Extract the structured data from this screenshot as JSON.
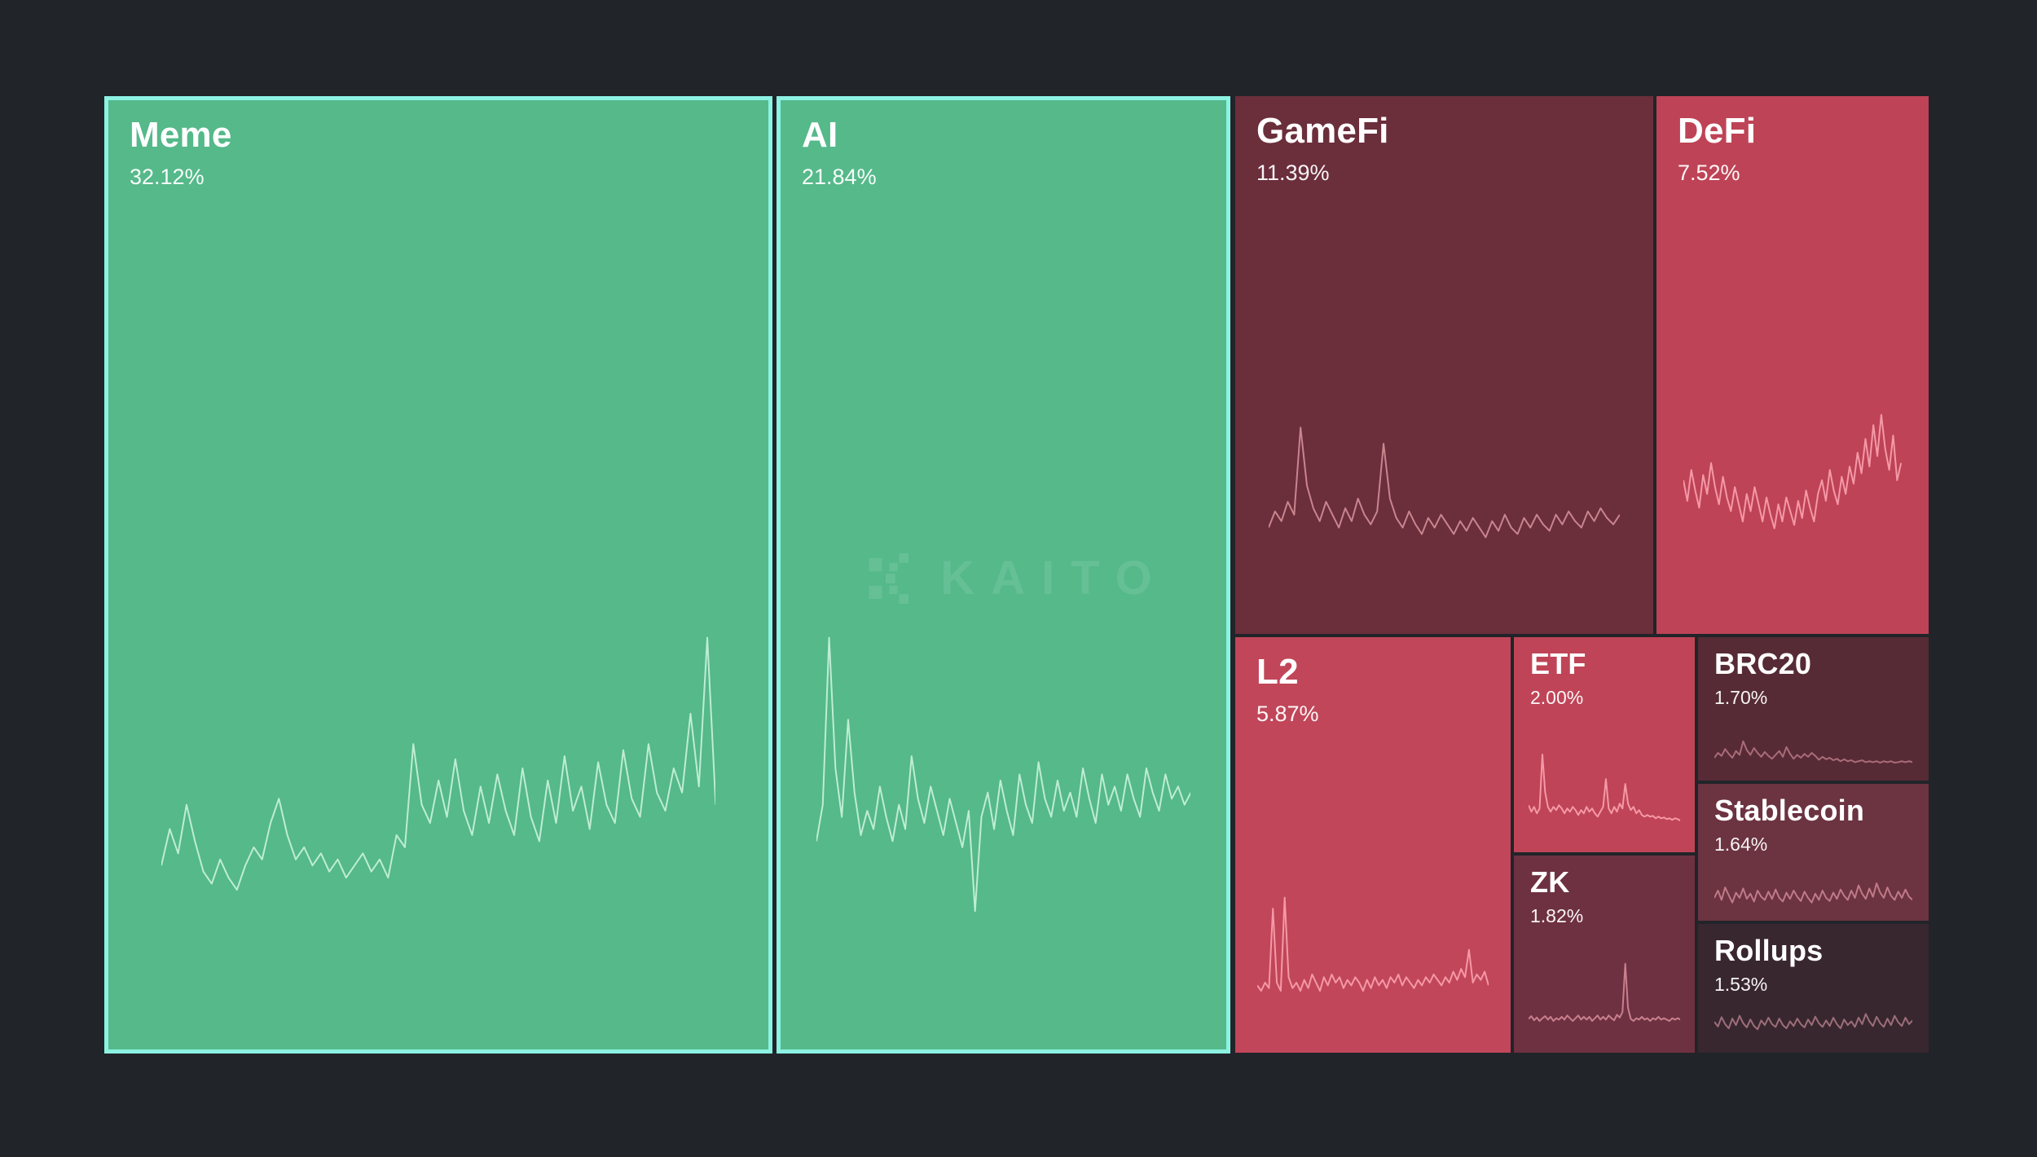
{
  "watermark": {
    "brand": "KAITO"
  },
  "colors": {
    "page_background": "#212429",
    "up_fill": "#55B98A",
    "up_border": "#8CF2E2",
    "down_bright": "#BF4457"
  },
  "chart_data": {
    "type": "treemap",
    "title": "",
    "unit": "%",
    "legend": "none",
    "note": "sector mindshare treemap; green tiles outlined cyan trend up, red tiles trend down; each tile contains a sparkline",
    "sectors": [
      {
        "name": "Meme",
        "share": "32.12%",
        "value": 32.12,
        "direction": "up",
        "fill": "#55B98A",
        "border": "#8CF2E2",
        "spark_color": "#BEEDD3",
        "spark": [
          20,
          32,
          24,
          40,
          28,
          18,
          14,
          22,
          16,
          12,
          20,
          26,
          22,
          34,
          42,
          30,
          22,
          26,
          20,
          24,
          18,
          22,
          16,
          20,
          24,
          18,
          22,
          16,
          30,
          26,
          60,
          40,
          34,
          48,
          36,
          55,
          38,
          30,
          46,
          34,
          50,
          38,
          30,
          52,
          36,
          28,
          48,
          34,
          56,
          38,
          46,
          32,
          54,
          40,
          34,
          58,
          42,
          36,
          60,
          44,
          38,
          52,
          44,
          70,
          46,
          95,
          40
        ]
      },
      {
        "name": "AI",
        "share": "21.84%",
        "value": 21.84,
        "direction": "up",
        "fill": "#55B98A",
        "border": "#8CF2E2",
        "spark_color": "#BEEDD3",
        "spark": [
          28,
          40,
          95,
          52,
          36,
          68,
          44,
          30,
          38,
          32,
          46,
          36,
          28,
          40,
          32,
          56,
          42,
          34,
          46,
          38,
          30,
          42,
          34,
          26,
          38,
          5,
          36,
          44,
          32,
          48,
          38,
          30,
          50,
          40,
          34,
          54,
          42,
          36,
          48,
          38,
          44,
          36,
          52,
          42,
          34,
          50,
          40,
          46,
          38,
          50,
          42,
          36,
          52,
          44,
          38,
          50,
          42,
          46,
          40,
          44
        ]
      },
      {
        "name": "GameFi",
        "share": "11.39%",
        "value": 11.39,
        "direction": "down",
        "fill": "#6B2E3B",
        "spark_color": "#C9858F",
        "spark": [
          26,
          36,
          30,
          42,
          34,
          88,
          52,
          38,
          30,
          42,
          34,
          26,
          38,
          30,
          44,
          34,
          28,
          36,
          78,
          44,
          32,
          26,
          36,
          28,
          22,
          32,
          26,
          34,
          28,
          22,
          30,
          24,
          32,
          26,
          20,
          30,
          24,
          34,
          26,
          22,
          32,
          26,
          34,
          28,
          24,
          34,
          28,
          36,
          30,
          26,
          36,
          30,
          38,
          32,
          28,
          34
        ]
      },
      {
        "name": "DeFi",
        "share": "7.52%",
        "value": 7.52,
        "direction": "down",
        "fill": "#BE4356",
        "spark_color": "#F598A7",
        "spark": [
          52,
          40,
          58,
          46,
          36,
          55,
          44,
          62,
          48,
          38,
          54,
          42,
          34,
          48,
          38,
          28,
          44,
          34,
          48,
          38,
          28,
          42,
          32,
          24,
          38,
          28,
          42,
          34,
          26,
          40,
          30,
          46,
          36,
          28,
          44,
          52,
          40,
          58,
          46,
          38,
          54,
          44,
          60,
          50,
          68,
          56,
          76,
          60,
          84,
          66,
          90,
          70,
          58,
          78,
          52,
          62
        ]
      },
      {
        "name": "L2",
        "share": "5.87%",
        "value": 5.87,
        "direction": "down",
        "fill": "#C14659",
        "spark_color": "#F598A7",
        "spark": [
          16,
          12,
          18,
          14,
          72,
          18,
          12,
          80,
          22,
          14,
          18,
          12,
          20,
          14,
          24,
          18,
          12,
          22,
          16,
          24,
          18,
          22,
          14,
          20,
          16,
          22,
          18,
          12,
          20,
          14,
          22,
          16,
          20,
          14,
          22,
          18,
          24,
          16,
          22,
          18,
          14,
          20,
          16,
          22,
          18,
          24,
          20,
          16,
          22,
          18,
          26,
          20,
          28,
          22,
          42,
          18,
          24,
          20,
          26,
          16
        ]
      },
      {
        "name": "ETF",
        "share": "2.00%",
        "value": 2.0,
        "direction": "down",
        "fill": "#BF4457",
        "spark_color": "#F598A7",
        "spark": [
          26,
          18,
          24,
          16,
          22,
          88,
          42,
          24,
          18,
          24,
          20,
          26,
          22,
          16,
          22,
          18,
          24,
          20,
          14,
          20,
          16,
          24,
          18,
          22,
          16,
          12,
          18,
          24,
          58,
          22,
          16,
          24,
          18,
          28,
          22,
          52,
          28,
          20,
          24,
          16,
          20,
          14,
          12,
          14,
          12,
          13,
          10,
          12,
          10,
          11,
          9,
          10,
          8,
          10,
          9,
          7
        ]
      },
      {
        "name": "ZK",
        "share": "1.82%",
        "value": 1.82,
        "direction": "down",
        "fill": "#6E3141",
        "spark_color": "#C97F8D",
        "spark": [
          12,
          16,
          10,
          14,
          9,
          13,
          16,
          11,
          15,
          9,
          13,
          11,
          15,
          11,
          17,
          13,
          9,
          13,
          17,
          11,
          15,
          11,
          15,
          9,
          13,
          17,
          11,
          15,
          11,
          17,
          13,
          10,
          18,
          14,
          22,
          92,
          28,
          12,
          9,
          13,
          11,
          15,
          11,
          13,
          9,
          13,
          11,
          15,
          11,
          13,
          11,
          9,
          13,
          11,
          13,
          11
        ]
      },
      {
        "name": "BRC20",
        "share": "1.70%",
        "value": 1.7,
        "direction": "down",
        "fill": "#562B35",
        "spark_color": "#AA6C78",
        "spark": [
          18,
          28,
          22,
          36,
          26,
          18,
          32,
          24,
          52,
          34,
          24,
          38,
          28,
          20,
          30,
          22,
          16,
          24,
          32,
          20,
          40,
          26,
          16,
          24,
          18,
          26,
          20,
          28,
          22,
          14,
          20,
          15,
          18,
          13,
          16,
          11,
          15,
          11,
          13,
          9,
          11,
          13,
          9,
          11,
          9,
          11,
          8,
          11,
          9,
          11,
          8,
          9,
          11,
          9,
          11,
          9
        ]
      },
      {
        "name": "Stablecoin",
        "share": "1.64%",
        "value": 1.64,
        "direction": "down",
        "fill": "#6C3341",
        "spark_color": "#C07A88",
        "spark": [
          28,
          42,
          24,
          48,
          33,
          19,
          38,
          28,
          46,
          26,
          36,
          21,
          42,
          30,
          24,
          40,
          26,
          44,
          28,
          21,
          38,
          26,
          42,
          30,
          22,
          40,
          28,
          19,
          36,
          24,
          42,
          28,
          22,
          38,
          26,
          44,
          32,
          24,
          42,
          28,
          52,
          36,
          26,
          46,
          30,
          56,
          38,
          28,
          48,
          32,
          24,
          40,
          28,
          44,
          30,
          24
        ]
      },
      {
        "name": "Rollups",
        "share": "1.53%",
        "value": 1.53,
        "direction": "down",
        "fill": "#39272F",
        "spark_color": "#9C6F7A",
        "spark": [
          33,
          23,
          43,
          28,
          19,
          40,
          26,
          46,
          30,
          21,
          38,
          24,
          17,
          36,
          26,
          42,
          28,
          22,
          40,
          26,
          19,
          34,
          24,
          40,
          28,
          21,
          38,
          26,
          44,
          30,
          22,
          36,
          24,
          42,
          28,
          19,
          38,
          26,
          34,
          22,
          42,
          28,
          50,
          34,
          24,
          44,
          30,
          22,
          40,
          26,
          46,
          32,
          24,
          42,
          28,
          36
        ]
      }
    ]
  }
}
